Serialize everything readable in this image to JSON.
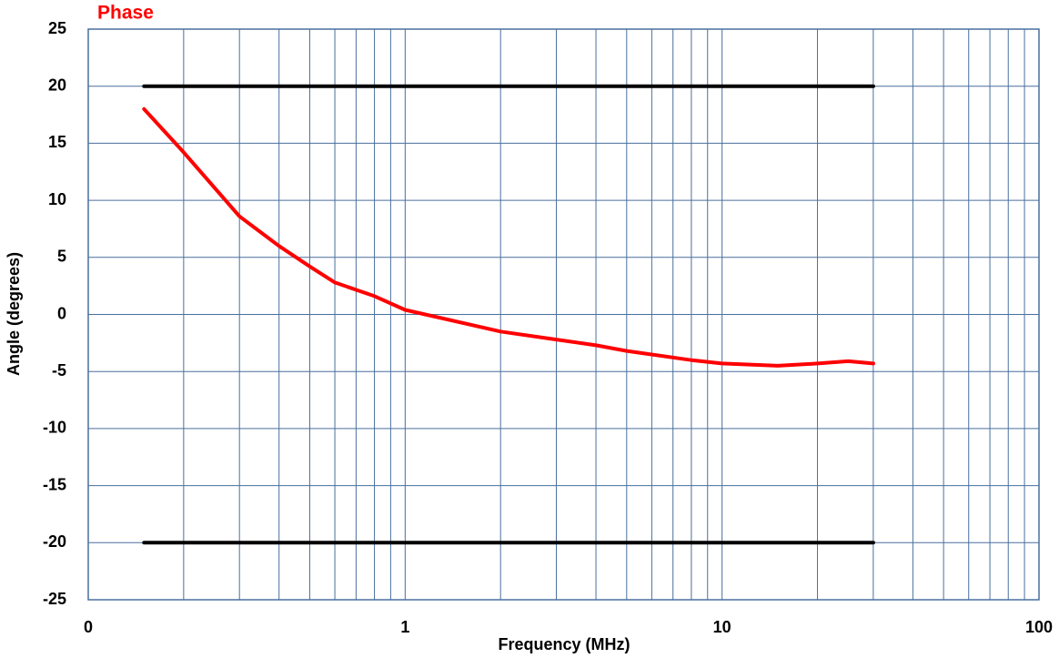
{
  "chart_data": {
    "type": "line",
    "title": "Phase",
    "title_color": "#ff0000",
    "x_label": "Frequency (MHz)",
    "y_label": "Angle (degrees)",
    "x_log": true,
    "grid": true,
    "xlim": [
      0.1,
      100
    ],
    "xticks": [
      {
        "value": 0.1,
        "label": "0"
      },
      1,
      10,
      100
    ],
    "xminorticks": [
      0.2,
      0.3,
      0.4,
      0.5,
      0.6,
      0.7,
      0.8,
      0.9,
      2,
      3,
      4,
      5,
      6,
      7,
      8,
      9,
      20,
      30,
      40,
      50,
      60,
      70,
      80,
      90
    ],
    "ylim": [
      -25,
      25
    ],
    "yticks": [
      25,
      20,
      15,
      10,
      5,
      0,
      -5,
      -10,
      -15,
      -20,
      -25
    ],
    "series": [
      {
        "color": "#ff0000",
        "x": [
          0.15,
          0.2,
          0.3,
          0.4,
          0.5,
          0.6,
          0.8,
          1,
          2,
          3,
          4,
          5,
          8,
          10,
          15,
          20,
          25,
          30
        ],
        "values": [
          18.0,
          14.2,
          8.6,
          6.0,
          4.2,
          2.8,
          1.6,
          0.4,
          -1.5,
          -2.2,
          -2.7,
          -3.2,
          -4.0,
          -4.3,
          -4.5,
          -4.3,
          -4.1,
          -4.3
        ]
      },
      {
        "color": "#000000",
        "x": [
          0.15,
          30
        ],
        "values": [
          20,
          20
        ]
      },
      {
        "color": "#000000",
        "x": [
          0.15,
          30
        ],
        "values": [
          -20,
          -20
        ]
      }
    ]
  }
}
